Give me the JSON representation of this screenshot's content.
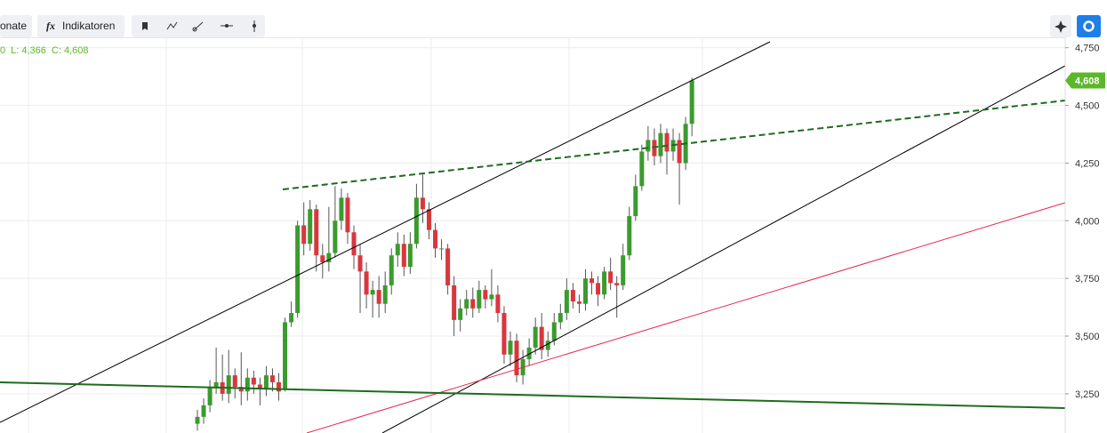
{
  "toolbar": {
    "months_button": "onate",
    "fx_icon": "fx",
    "indicators_button": "Indikatoren"
  },
  "chart_data": {
    "type": "candlestick",
    "info": [
      "0",
      "L: 4,366",
      "C: 4,608"
    ],
    "last_price_label": "4,608",
    "up_color": "#3a9b2e",
    "down_color": "#d9363e",
    "grid": true,
    "ylim": [
      3080,
      4795
    ],
    "yticks": [
      {
        "value": 3250,
        "label": "3,250"
      },
      {
        "value": 3500,
        "label": "3,500"
      },
      {
        "value": 3750,
        "label": "3,750"
      },
      {
        "value": 4000,
        "label": "4,000"
      },
      {
        "value": 4250,
        "label": "4,250"
      },
      {
        "value": 4500,
        "label": "4,500"
      },
      {
        "value": 4750,
        "label": "4,750"
      }
    ],
    "open": [
      3120,
      3150,
      3200,
      3280,
      3300,
      3250,
      3330,
      3280,
      3260,
      3320,
      3290,
      3270,
      3330,
      3300,
      3270,
      3560,
      3600,
      3980,
      3900,
      4050,
      3850,
      3820,
      3860,
      4000,
      4100,
      3950,
      3850,
      3780,
      3680,
      3700,
      3640,
      3720,
      3850,
      3900,
      3800,
      3900,
      4100,
      4050,
      3960,
      3880,
      3880,
      3720,
      3570,
      3620,
      3660,
      3620,
      3700,
      3660,
      3680,
      3600,
      3420,
      3480,
      3330,
      3400,
      3450,
      3540,
      3440,
      3480,
      3560,
      3600,
      3700,
      3650,
      3640,
      3750,
      3730,
      3680,
      3780,
      3730,
      3720,
      3850,
      4020,
      4150,
      4300,
      4350,
      4280,
      4380,
      4300,
      4350,
      4250,
      4420
    ],
    "high": [
      3180,
      3230,
      3310,
      3450,
      3420,
      3440,
      3360,
      3430,
      3360,
      3350,
      3320,
      3370,
      3360,
      3340,
      3580,
      3650,
      4000,
      4080,
      4090,
      4070,
      3900,
      4060,
      4150,
      4140,
      4120,
      3980,
      3900,
      3820,
      3740,
      3760,
      3780,
      3880,
      3950,
      3940,
      3950,
      4160,
      4200,
      4080,
      3990,
      3920,
      3900,
      3760,
      3660,
      3700,
      3710,
      3740,
      3720,
      3790,
      3720,
      3630,
      3520,
      3510,
      3440,
      3490,
      3580,
      3600,
      3520,
      3600,
      3640,
      3750,
      3730,
      3680,
      3790,
      3780,
      3760,
      3800,
      3840,
      3760,
      3900,
      4060,
      4200,
      4330,
      4410,
      4400,
      4420,
      4400,
      4400,
      4380,
      4450,
      4620
    ],
    "low": [
      3090,
      3120,
      3170,
      3250,
      3220,
      3210,
      3230,
      3200,
      3220,
      3250,
      3200,
      3240,
      3260,
      3220,
      3260,
      3540,
      3580,
      3850,
      3870,
      3780,
      3750,
      3780,
      3840,
      3960,
      3900,
      3790,
      3600,
      3620,
      3580,
      3580,
      3600,
      3680,
      3800,
      3760,
      3770,
      3880,
      3990,
      3920,
      3840,
      3830,
      3680,
      3500,
      3520,
      3590,
      3580,
      3600,
      3620,
      3630,
      3560,
      3380,
      3370,
      3300,
      3290,
      3370,
      3420,
      3400,
      3410,
      3460,
      3530,
      3570,
      3620,
      3600,
      3610,
      3680,
      3630,
      3660,
      3700,
      3580,
      3700,
      3830,
      4000,
      4130,
      4260,
      4240,
      4250,
      4200,
      4260,
      4070,
      4220,
      4366
    ],
    "close": [
      3150,
      3200,
      3280,
      3300,
      3250,
      3330,
      3280,
      3260,
      3320,
      3290,
      3270,
      3330,
      3300,
      3260,
      3560,
      3600,
      3980,
      3900,
      4050,
      3850,
      3820,
      3860,
      4000,
      4100,
      3950,
      3850,
      3780,
      3680,
      3700,
      3640,
      3720,
      3850,
      3900,
      3800,
      3900,
      4100,
      4050,
      3960,
      3880,
      3880,
      3720,
      3570,
      3620,
      3660,
      3620,
      3700,
      3660,
      3680,
      3600,
      3420,
      3480,
      3330,
      3400,
      3450,
      3540,
      3440,
      3480,
      3560,
      3600,
      3700,
      3650,
      3640,
      3750,
      3730,
      3680,
      3780,
      3730,
      3720,
      3850,
      4020,
      4150,
      4300,
      4350,
      4280,
      4380,
      4300,
      4350,
      4250,
      4420,
      4608
    ]
  }
}
